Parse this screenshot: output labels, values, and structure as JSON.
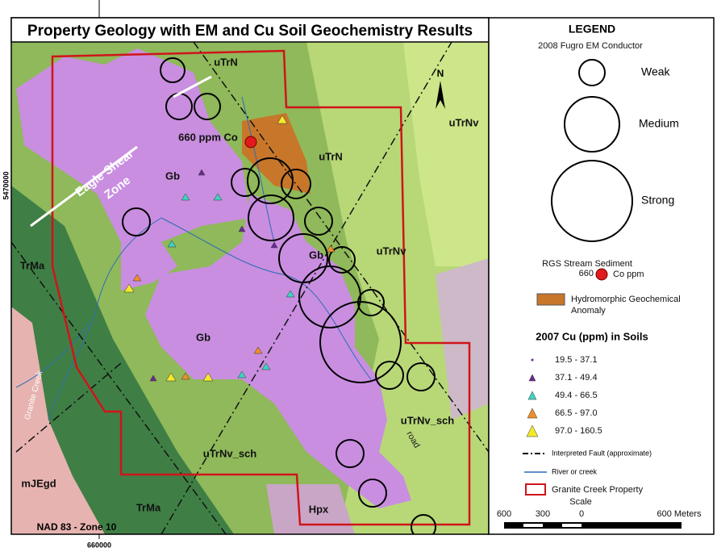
{
  "title": "Property Geology with EM and Cu Soil Geochemistry Results",
  "map": {
    "labels": [
      "uTrN",
      "uTrN",
      "uTrNv",
      "uTrNv",
      "Gb",
      "Gb",
      "Gb",
      "TrMa",
      "TrMa",
      "mJEgd",
      "uTrNv_sch",
      "uTrNv_sch",
      "Hpx"
    ],
    "shear_zone": [
      "Eagle Shear",
      "Zone"
    ],
    "sample": "660 ppm Co",
    "creek": "Granite Creek",
    "road": "road",
    "north": "N",
    "datum": "NAD 83 - Zone 10",
    "northing": "5470000",
    "easting": "660000"
  },
  "legend": {
    "title": "LEGEND",
    "em_heading": "2008 Fugro EM Conductor",
    "em_classes": [
      "Weak",
      "Medium",
      "Strong"
    ],
    "rgs_heading": "RGS Stream Sediment",
    "rgs_value": "660",
    "rgs_unit": "Co ppm",
    "anomaly": [
      "Hydromorphic Geochemical",
      "Anomaly"
    ],
    "cu_heading": "2007 Cu (ppm) in Soils",
    "cu_classes": [
      "19.5 - 37.1",
      "37.1 - 49.4",
      "49.4 - 66.5",
      "66.5 - 97.0",
      "97.0 - 160.5"
    ],
    "fault": "Interpreted Fault (approximate)",
    "river": "River or creek",
    "property": "Granite Creek Property",
    "scale_heading": "Scale",
    "scale_labels": [
      "600",
      "300",
      "0",
      "600 Meters"
    ]
  }
}
